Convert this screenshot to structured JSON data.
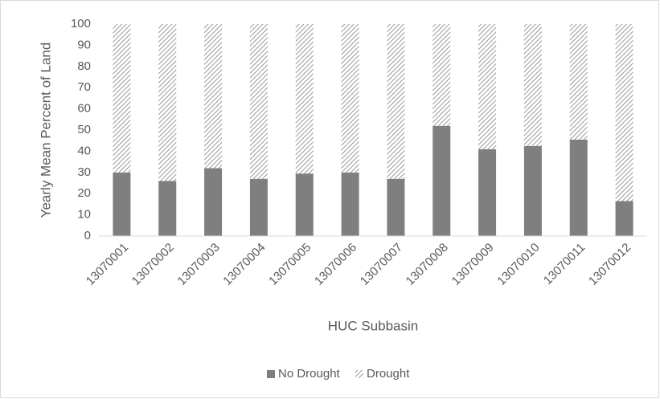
{
  "chart_data": {
    "type": "bar",
    "stacked": true,
    "x_label": "HUC Subbasin",
    "y_label": "Yearly Mean Percent of Land",
    "categories": [
      "13070001",
      "13070002",
      "13070003",
      "13070004",
      "13070005",
      "13070006",
      "13070007",
      "13070008",
      "13070009",
      "13070010",
      "13070011",
      "13070012"
    ],
    "series": [
      {
        "name": "No Drought",
        "color": "#7f7f7f",
        "values": [
          30,
          26,
          32,
          27,
          29.5,
          30,
          27,
          52,
          41,
          42.5,
          45.5,
          16.5
        ]
      },
      {
        "name": "Drought",
        "color": "#7f7f7f",
        "pattern": "hatch",
        "values": [
          70,
          74,
          68,
          73,
          70.5,
          70,
          73,
          48,
          59,
          57.5,
          54.5,
          83.5
        ]
      }
    ],
    "ylim": [
      0,
      100
    ],
    "yticks": [
      0,
      10,
      20,
      30,
      40,
      50,
      60,
      70,
      80,
      90,
      100
    ],
    "grid": false,
    "legend": "bottom"
  }
}
